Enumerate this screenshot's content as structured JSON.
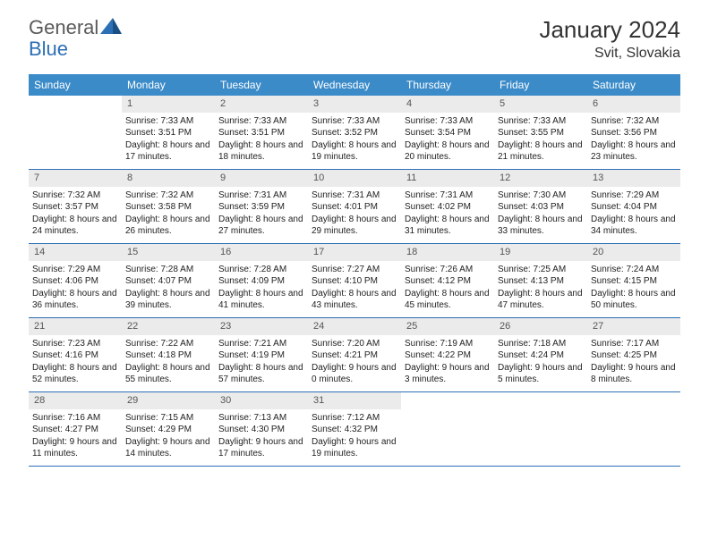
{
  "logo": {
    "general": "General",
    "blue": "Blue"
  },
  "header": {
    "month_title": "January 2024",
    "location": "Svit, Slovakia"
  },
  "style": {
    "header_bg": "#3b8bc9",
    "header_text": "#ffffff",
    "daynum_bg": "#ebebeb",
    "daynum_text": "#555555",
    "border_color": "#2d6fb5",
    "body_text": "#222222",
    "logo_gray": "#5a5a5a",
    "logo_blue": "#2d6fb5",
    "font_size_title": 26,
    "font_size_location": 16,
    "font_size_weekday": 12,
    "font_size_daynum": 11,
    "font_size_body": 10
  },
  "weekdays": [
    "Sunday",
    "Monday",
    "Tuesday",
    "Wednesday",
    "Thursday",
    "Friday",
    "Saturday"
  ],
  "weeks": [
    [
      {
        "day": "",
        "sunrise": "",
        "sunset": "",
        "daylight": ""
      },
      {
        "day": "1",
        "sunrise": "Sunrise: 7:33 AM",
        "sunset": "Sunset: 3:51 PM",
        "daylight": "Daylight: 8 hours and 17 minutes."
      },
      {
        "day": "2",
        "sunrise": "Sunrise: 7:33 AM",
        "sunset": "Sunset: 3:51 PM",
        "daylight": "Daylight: 8 hours and 18 minutes."
      },
      {
        "day": "3",
        "sunrise": "Sunrise: 7:33 AM",
        "sunset": "Sunset: 3:52 PM",
        "daylight": "Daylight: 8 hours and 19 minutes."
      },
      {
        "day": "4",
        "sunrise": "Sunrise: 7:33 AM",
        "sunset": "Sunset: 3:54 PM",
        "daylight": "Daylight: 8 hours and 20 minutes."
      },
      {
        "day": "5",
        "sunrise": "Sunrise: 7:33 AM",
        "sunset": "Sunset: 3:55 PM",
        "daylight": "Daylight: 8 hours and 21 minutes."
      },
      {
        "day": "6",
        "sunrise": "Sunrise: 7:32 AM",
        "sunset": "Sunset: 3:56 PM",
        "daylight": "Daylight: 8 hours and 23 minutes."
      }
    ],
    [
      {
        "day": "7",
        "sunrise": "Sunrise: 7:32 AM",
        "sunset": "Sunset: 3:57 PM",
        "daylight": "Daylight: 8 hours and 24 minutes."
      },
      {
        "day": "8",
        "sunrise": "Sunrise: 7:32 AM",
        "sunset": "Sunset: 3:58 PM",
        "daylight": "Daylight: 8 hours and 26 minutes."
      },
      {
        "day": "9",
        "sunrise": "Sunrise: 7:31 AM",
        "sunset": "Sunset: 3:59 PM",
        "daylight": "Daylight: 8 hours and 27 minutes."
      },
      {
        "day": "10",
        "sunrise": "Sunrise: 7:31 AM",
        "sunset": "Sunset: 4:01 PM",
        "daylight": "Daylight: 8 hours and 29 minutes."
      },
      {
        "day": "11",
        "sunrise": "Sunrise: 7:31 AM",
        "sunset": "Sunset: 4:02 PM",
        "daylight": "Daylight: 8 hours and 31 minutes."
      },
      {
        "day": "12",
        "sunrise": "Sunrise: 7:30 AM",
        "sunset": "Sunset: 4:03 PM",
        "daylight": "Daylight: 8 hours and 33 minutes."
      },
      {
        "day": "13",
        "sunrise": "Sunrise: 7:29 AM",
        "sunset": "Sunset: 4:04 PM",
        "daylight": "Daylight: 8 hours and 34 minutes."
      }
    ],
    [
      {
        "day": "14",
        "sunrise": "Sunrise: 7:29 AM",
        "sunset": "Sunset: 4:06 PM",
        "daylight": "Daylight: 8 hours and 36 minutes."
      },
      {
        "day": "15",
        "sunrise": "Sunrise: 7:28 AM",
        "sunset": "Sunset: 4:07 PM",
        "daylight": "Daylight: 8 hours and 39 minutes."
      },
      {
        "day": "16",
        "sunrise": "Sunrise: 7:28 AM",
        "sunset": "Sunset: 4:09 PM",
        "daylight": "Daylight: 8 hours and 41 minutes."
      },
      {
        "day": "17",
        "sunrise": "Sunrise: 7:27 AM",
        "sunset": "Sunset: 4:10 PM",
        "daylight": "Daylight: 8 hours and 43 minutes."
      },
      {
        "day": "18",
        "sunrise": "Sunrise: 7:26 AM",
        "sunset": "Sunset: 4:12 PM",
        "daylight": "Daylight: 8 hours and 45 minutes."
      },
      {
        "day": "19",
        "sunrise": "Sunrise: 7:25 AM",
        "sunset": "Sunset: 4:13 PM",
        "daylight": "Daylight: 8 hours and 47 minutes."
      },
      {
        "day": "20",
        "sunrise": "Sunrise: 7:24 AM",
        "sunset": "Sunset: 4:15 PM",
        "daylight": "Daylight: 8 hours and 50 minutes."
      }
    ],
    [
      {
        "day": "21",
        "sunrise": "Sunrise: 7:23 AM",
        "sunset": "Sunset: 4:16 PM",
        "daylight": "Daylight: 8 hours and 52 minutes."
      },
      {
        "day": "22",
        "sunrise": "Sunrise: 7:22 AM",
        "sunset": "Sunset: 4:18 PM",
        "daylight": "Daylight: 8 hours and 55 minutes."
      },
      {
        "day": "23",
        "sunrise": "Sunrise: 7:21 AM",
        "sunset": "Sunset: 4:19 PM",
        "daylight": "Daylight: 8 hours and 57 minutes."
      },
      {
        "day": "24",
        "sunrise": "Sunrise: 7:20 AM",
        "sunset": "Sunset: 4:21 PM",
        "daylight": "Daylight: 9 hours and 0 minutes."
      },
      {
        "day": "25",
        "sunrise": "Sunrise: 7:19 AM",
        "sunset": "Sunset: 4:22 PM",
        "daylight": "Daylight: 9 hours and 3 minutes."
      },
      {
        "day": "26",
        "sunrise": "Sunrise: 7:18 AM",
        "sunset": "Sunset: 4:24 PM",
        "daylight": "Daylight: 9 hours and 5 minutes."
      },
      {
        "day": "27",
        "sunrise": "Sunrise: 7:17 AM",
        "sunset": "Sunset: 4:25 PM",
        "daylight": "Daylight: 9 hours and 8 minutes."
      }
    ],
    [
      {
        "day": "28",
        "sunrise": "Sunrise: 7:16 AM",
        "sunset": "Sunset: 4:27 PM",
        "daylight": "Daylight: 9 hours and 11 minutes."
      },
      {
        "day": "29",
        "sunrise": "Sunrise: 7:15 AM",
        "sunset": "Sunset: 4:29 PM",
        "daylight": "Daylight: 9 hours and 14 minutes."
      },
      {
        "day": "30",
        "sunrise": "Sunrise: 7:13 AM",
        "sunset": "Sunset: 4:30 PM",
        "daylight": "Daylight: 9 hours and 17 minutes."
      },
      {
        "day": "31",
        "sunrise": "Sunrise: 7:12 AM",
        "sunset": "Sunset: 4:32 PM",
        "daylight": "Daylight: 9 hours and 19 minutes."
      },
      {
        "day": "",
        "sunrise": "",
        "sunset": "",
        "daylight": ""
      },
      {
        "day": "",
        "sunrise": "",
        "sunset": "",
        "daylight": ""
      },
      {
        "day": "",
        "sunrise": "",
        "sunset": "",
        "daylight": ""
      }
    ]
  ]
}
